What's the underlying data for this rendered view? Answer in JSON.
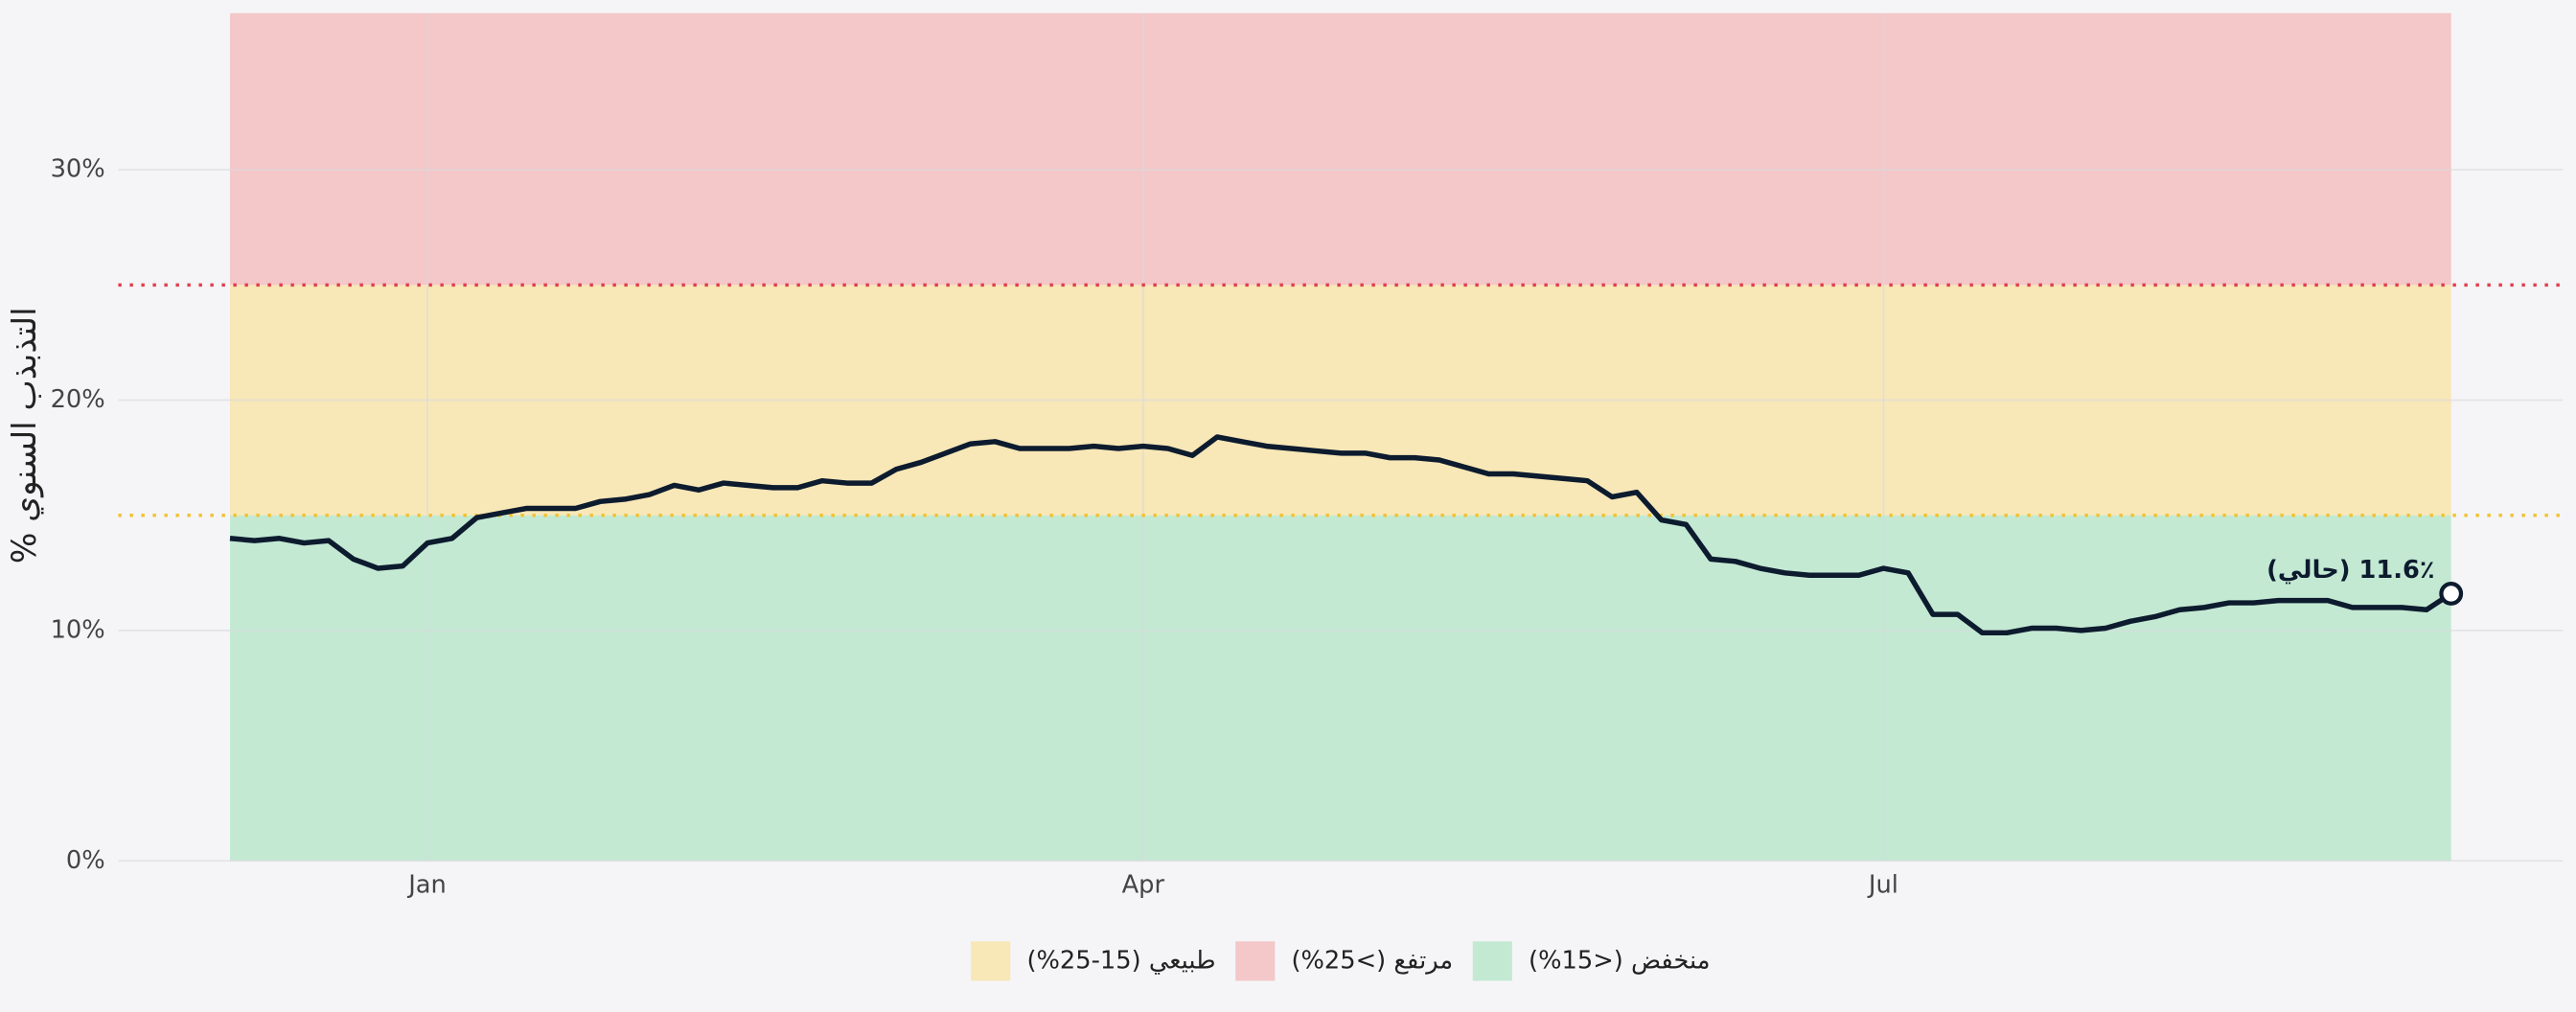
{
  "chart_data": {
    "type": "line",
    "y_label": "التذبذب السنوي %",
    "annotation": "11.6٪ (حالي)",
    "categories": [
      null,
      null,
      null,
      null,
      null,
      null,
      null,
      null,
      "Jan",
      null,
      null,
      null,
      null,
      null,
      null,
      null,
      null,
      null,
      null,
      null,
      null,
      null,
      null,
      null,
      null,
      null,
      null,
      null,
      null,
      null,
      null,
      null,
      null,
      null,
      null,
      null,
      null,
      "Apr",
      null,
      null,
      null,
      null,
      null,
      null,
      null,
      null,
      null,
      null,
      null,
      null,
      null,
      null,
      null,
      null,
      null,
      null,
      null,
      null,
      null,
      null,
      null,
      null,
      null,
      null,
      null,
      null,
      null,
      "Jul",
      null,
      null,
      null,
      null,
      null,
      null,
      null,
      null,
      null,
      null,
      null,
      null,
      null,
      null,
      null,
      null,
      null,
      null,
      null,
      null,
      null,
      null,
      null
    ],
    "series": [
      {
        "color": "#0d1b2e",
        "values": [
          14.0,
          13.9,
          14.0,
          13.8,
          13.9,
          13.1,
          12.7,
          12.8,
          13.8,
          14.0,
          14.9,
          15.1,
          15.3,
          15.3,
          15.3,
          15.6,
          15.7,
          15.9,
          16.3,
          16.1,
          16.4,
          16.3,
          16.2,
          16.2,
          16.5,
          16.4,
          16.4,
          17.0,
          17.3,
          17.7,
          18.1,
          18.2,
          17.9,
          17.9,
          17.9,
          18.0,
          17.9,
          18.0,
          17.9,
          17.6,
          18.4,
          18.2,
          18.0,
          17.9,
          17.8,
          17.7,
          17.7,
          17.5,
          17.5,
          17.4,
          17.1,
          16.8,
          16.8,
          16.7,
          16.6,
          16.5,
          15.8,
          16.0,
          14.8,
          14.6,
          13.1,
          13.0,
          12.7,
          12.5,
          12.4,
          12.4,
          12.4,
          12.7,
          12.5,
          10.7,
          10.7,
          9.9,
          9.9,
          10.1,
          10.1,
          10.0,
          10.1,
          10.4,
          10.6,
          10.9,
          11.0,
          11.2,
          11.2,
          11.3,
          11.3,
          11.3,
          11.0,
          11.0,
          11.0,
          10.9,
          11.6
        ]
      }
    ],
    "ylim": [
      0,
      36.8
    ],
    "yticks": [
      {
        "value": 0,
        "label": "0%"
      },
      {
        "value": 10,
        "label": "10%"
      },
      {
        "value": 20,
        "label": "20%"
      },
      {
        "value": 30,
        "label": "30%"
      }
    ],
    "grid": true,
    "bands": [
      {
        "name": "طبيعي (15-25%)",
        "color": "#f8e7b7",
        "line_color": "#f2c230",
        "min": 15,
        "max": 25
      },
      {
        "name": "مرتفع (>25%)",
        "color": "#f4c7c9",
        "line_color": "#e0404c",
        "min": 25
      },
      {
        "name": "منخفض (<15%)",
        "color": "#c3e9d3",
        "min": 0,
        "max": 15
      }
    ]
  }
}
